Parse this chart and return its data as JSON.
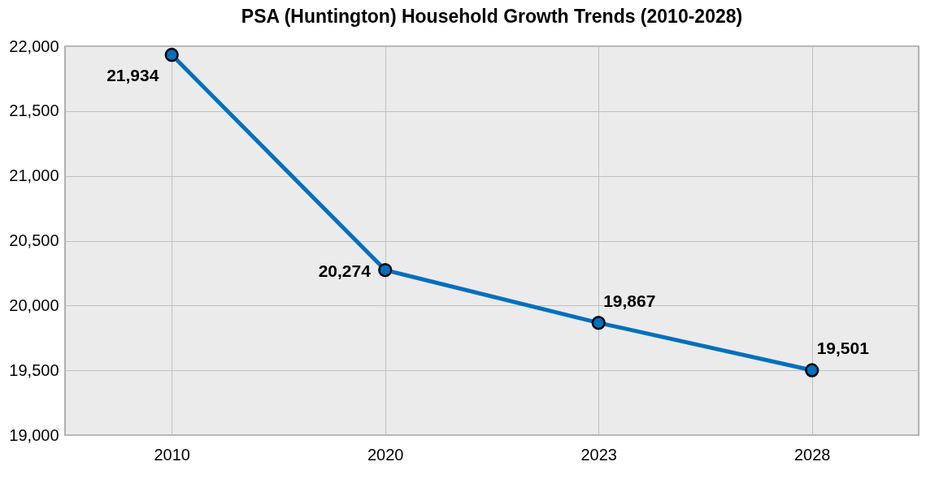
{
  "chart_data": {
    "type": "line",
    "title": "PSA (Huntington) Household Growth Trends (2010-2028)",
    "categories": [
      "2010",
      "2020",
      "2023",
      "2028"
    ],
    "series": [
      {
        "color": "#0070c0",
        "values": [
          21934,
          20274,
          19867,
          19501
        ],
        "value_labels": [
          "21,934",
          "20,274",
          "19,867",
          "19,501"
        ]
      }
    ],
    "ylim": [
      19000,
      22000
    ],
    "yticks": [
      {
        "value": 19000,
        "label": "19,000"
      },
      {
        "value": 19500,
        "label": "19,500"
      },
      {
        "value": 20000,
        "label": "20,000"
      },
      {
        "value": 20500,
        "label": "20,500"
      },
      {
        "value": 21000,
        "label": "21,000"
      },
      {
        "value": 21500,
        "label": "21,500"
      },
      {
        "value": 22000,
        "label": "22,000"
      }
    ],
    "grid": true,
    "marker": "circle",
    "line_style": "solid"
  }
}
